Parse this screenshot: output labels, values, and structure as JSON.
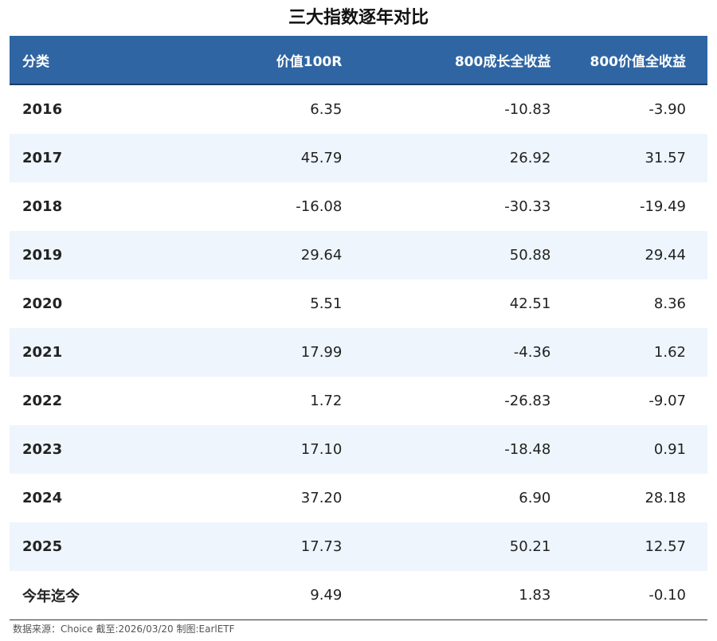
{
  "title": "三大指数逐年对比",
  "table": {
    "header": [
      "分类",
      "价值100R",
      "800成长全收益",
      "800价值全收益"
    ],
    "rows": [
      [
        "2016",
        "6.35",
        "-10.83",
        "-3.90"
      ],
      [
        "2017",
        "45.79",
        "26.92",
        "31.57"
      ],
      [
        "2018",
        "-16.08",
        "-30.33",
        "-19.49"
      ],
      [
        "2019",
        "29.64",
        "50.88",
        "29.44"
      ],
      [
        "2020",
        "5.51",
        "42.51",
        "8.36"
      ],
      [
        "2021",
        "17.99",
        "-4.36",
        "1.62"
      ],
      [
        "2022",
        "1.72",
        "-26.83",
        "-9.07"
      ],
      [
        "2023",
        "17.10",
        "-18.48",
        "0.91"
      ],
      [
        "2024",
        "37.20",
        "6.90",
        "28.18"
      ],
      [
        "2025",
        "17.73",
        "50.21",
        "12.57"
      ],
      [
        "今年迄今",
        "9.49",
        "1.83",
        "-0.10"
      ]
    ]
  },
  "footer": "数据来源：Choice 截至:2026/03/20 制图:EarlETF"
}
